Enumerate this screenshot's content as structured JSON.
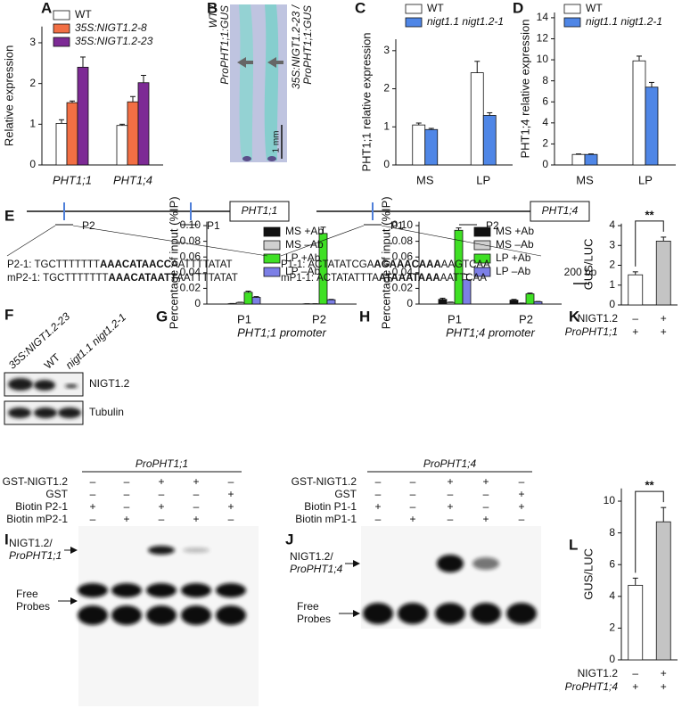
{
  "chart_data": [
    {
      "type": "bar",
      "label": "A",
      "ylabel": "Relative expression",
      "categories": [
        "PHT1;1",
        "PHT1;4"
      ],
      "series": [
        {
          "name": "WT",
          "color": "#ffffff",
          "values": [
            1.02,
            0.97
          ],
          "errors": [
            0.09,
            0.03
          ]
        },
        {
          "name": "35S:NIGT1.2-8",
          "color": "#f26f44",
          "values": [
            1.53,
            1.55
          ],
          "errors": [
            0.04,
            0.13
          ]
        },
        {
          "name": "35S:NIGT1.2-23",
          "color": "#7d2a95",
          "values": [
            2.4,
            2.02
          ],
          "errors": [
            0.25,
            0.18
          ]
        }
      ],
      "ylim": [
        0,
        3.4
      ],
      "yticks": [
        0,
        1,
        2,
        3
      ],
      "legend": "upper left"
    },
    {
      "type": "bar",
      "label": "C",
      "ylabel": "PHT1;1 relative expression",
      "categories": [
        "MS",
        "LP"
      ],
      "series": [
        {
          "name": "WT",
          "color": "#ffffff",
          "values": [
            1.05,
            2.42
          ],
          "errors": [
            0.05,
            0.3
          ]
        },
        {
          "name": "nigt1.1 nigt1.2-1",
          "color": "#4f86e6",
          "values": [
            0.93,
            1.3
          ],
          "errors": [
            0.03,
            0.07
          ]
        }
      ],
      "ylim": [
        0,
        3.3
      ],
      "yticks": [
        0,
        1,
        2,
        3
      ],
      "legend": "upper left"
    },
    {
      "type": "bar",
      "label": "D",
      "ylabel": "PHT1;4 relative expression",
      "categories": [
        "MS",
        "LP"
      ],
      "series": [
        {
          "name": "WT",
          "color": "#ffffff",
          "values": [
            1.0,
            9.9
          ],
          "errors": [
            0.05,
            0.45
          ]
        },
        {
          "name": "nigt1.1 nigt1.2-1",
          "color": "#4f86e6",
          "values": [
            1.0,
            7.4
          ],
          "errors": [
            0.05,
            0.45
          ]
        }
      ],
      "ylim": [
        0,
        14.5
      ],
      "yticks": [
        0,
        2,
        4,
        6,
        8,
        10,
        12,
        14
      ],
      "legend": "upper left"
    },
    {
      "type": "bar",
      "label": "G",
      "ylabel": "Percentage of input (%IP)",
      "xlabel": "PHT1;1 promoter",
      "categories": [
        "P1",
        "P2"
      ],
      "series": [
        {
          "name": "MS +Ab",
          "color": "#111111",
          "values": [
            0.0005,
            0.0003
          ],
          "errors": [
            0.0002,
            0.0001
          ]
        },
        {
          "name": "MS –Ab",
          "color": "#d0d0d0",
          "values": [
            0.002,
            0.0003
          ],
          "errors": [
            0.0003,
            0.0001
          ]
        },
        {
          "name": "LP +Ab",
          "color": "#3fe024",
          "values": [
            0.015,
            0.09
          ],
          "errors": [
            0.0015,
            0.008
          ]
        },
        {
          "name": "LP –Ab",
          "color": "#7c7fe6",
          "values": [
            0.0085,
            0.0055
          ],
          "errors": [
            0.001,
            0.0005
          ]
        }
      ],
      "ylim": [
        0,
        0.105
      ],
      "yticks": [
        0,
        0.02,
        0.04,
        0.06,
        0.08,
        {
          "value": 0.1,
          "label": "0.10"
        }
      ],
      "legend": "upper right"
    },
    {
      "type": "bar",
      "label": "H",
      "ylabel": "Percentage of input (%IP)",
      "xlabel": "PHT1;4 promoter",
      "categories": [
        "P1",
        "P2"
      ],
      "series": [
        {
          "name": "MS +Ab",
          "color": "#111111",
          "values": [
            0.006,
            0.005
          ],
          "errors": [
            0.0015,
            0.001
          ]
        },
        {
          "name": "MS –Ab",
          "color": "#d0d0d0",
          "values": [
            0.002,
            0.001
          ],
          "errors": [
            0.0005,
            0.0003
          ]
        },
        {
          "name": "LP +Ab",
          "color": "#3fe024",
          "values": [
            0.094,
            0.013
          ],
          "errors": [
            0.003,
            0.001
          ]
        },
        {
          "name": "LP –Ab",
          "color": "#7c7fe6",
          "values": [
            0.031,
            0.003
          ],
          "errors": [
            0.007,
            0.0003
          ]
        }
      ],
      "ylim": [
        0,
        0.105
      ],
      "yticks": [
        0,
        0.02,
        0.04,
        0.06,
        0.08,
        {
          "value": 0.1,
          "label": "0.10"
        }
      ],
      "legend": "upper right"
    },
    {
      "type": "bar",
      "label": "K",
      "ylabel": "GUS/LUC",
      "categories": [
        null,
        null
      ],
      "values": [
        1.52,
        3.22
      ],
      "errors": [
        0.15,
        0.2
      ],
      "colors": [
        "#ffffff",
        "#c4c4c4"
      ],
      "ylim": [
        0,
        4.1
      ],
      "yticks": [
        0,
        1,
        2,
        3,
        4
      ],
      "significance": "**",
      "conditions": [
        {
          "name": "NIGT1.2",
          "values": [
            "–",
            "+"
          ]
        },
        {
          "name": "ProPHT1;1",
          "values": [
            "+",
            "+"
          ]
        }
      ]
    },
    {
      "type": "bar",
      "label": "L",
      "ylabel": "GUS/LUC",
      "categories": [
        null,
        null
      ],
      "values": [
        4.7,
        8.7
      ],
      "errors": [
        0.45,
        0.9
      ],
      "colors": [
        "#ffffff",
        "#c4c4c4"
      ],
      "ylim": [
        0,
        10.8
      ],
      "yticks": [
        0,
        2,
        4,
        6,
        8,
        10
      ],
      "significance": "**",
      "conditions": [
        {
          "name": "NIGT1.2",
          "values": [
            "–",
            "+"
          ]
        },
        {
          "name": "ProPHT1;4",
          "values": [
            "+",
            "+"
          ]
        }
      ]
    }
  ],
  "panel_b": {
    "label": "B",
    "left_label": [
      "WT /",
      "ProPHT1;1:GUS"
    ],
    "right_label": [
      "35S:NIGT1.2-23 /",
      "ProPHT1;1:GUS"
    ],
    "scale": "1 mm"
  },
  "panel_e": {
    "label": "E",
    "scale": "200 bp",
    "left": {
      "gene": "PHT1;1",
      "primers": [
        "P2",
        "P1"
      ],
      "sequences": [
        {
          "name": "P2-1:",
          "parts": [
            "TGCTTTTTTT",
            "AAACATAACC",
            "AATTTTATAT"
          ]
        },
        {
          "name": "mP2-1:",
          "parts": [
            "TGCTTTTTTT",
            "AAACATAATT",
            "AATTTTATAT"
          ]
        }
      ]
    },
    "right": {
      "gene": "PHT1;4",
      "primers": [
        "P1",
        "P2"
      ],
      "sequences": [
        {
          "name": "P1-1:",
          "parts": [
            "ACTATATCGA",
            "AGAAACAAA",
            "AAGTCAA"
          ]
        },
        {
          "name": "mP1-1:",
          "parts": [
            "ACTATATTTA",
            "ATAAATAAA",
            "AATTCAA"
          ]
        }
      ]
    }
  },
  "panel_f": {
    "label": "F",
    "lanes": [
      "35S:NIGT1.2-23",
      "WT",
      "nigt1.1 nigt1.2-1"
    ],
    "bands": [
      "NIGT1.2",
      "Tubulin"
    ]
  },
  "panel_i": {
    "label": "I",
    "title": "ProPHT1;1",
    "rows": [
      {
        "name": "GST-NIGT1.2",
        "values": [
          "–",
          "–",
          "+",
          "+",
          "–"
        ]
      },
      {
        "name": "GST",
        "values": [
          "–",
          "–",
          "–",
          "–",
          "+"
        ]
      },
      {
        "name": "Biotin P2-1",
        "values": [
          "+",
          "–",
          "+",
          "–",
          "+"
        ]
      },
      {
        "name": "Biotin mP2-1",
        "values": [
          "–",
          "+",
          "–",
          "+",
          "–"
        ]
      }
    ],
    "band_label": [
      "NIGT1.2/",
      "ProPHT1;1"
    ],
    "free_label": [
      "Free",
      "Probes"
    ]
  },
  "panel_j": {
    "label": "J",
    "title": "ProPHT1;4",
    "rows": [
      {
        "name": "GST-NIGT1.2",
        "values": [
          "–",
          "–",
          "+",
          "+",
          "–"
        ]
      },
      {
        "name": "GST",
        "values": [
          "–",
          "–",
          "–",
          "–",
          "+"
        ]
      },
      {
        "name": "Biotin P1-1",
        "values": [
          "+",
          "–",
          "+",
          "–",
          "+"
        ]
      },
      {
        "name": "Biotin mP1-1",
        "values": [
          "–",
          "+",
          "–",
          "+",
          "–"
        ]
      }
    ],
    "band_label": [
      "NIGT1.2/",
      "ProPHT1;4"
    ],
    "free_label": [
      "Free",
      "Probes"
    ]
  }
}
